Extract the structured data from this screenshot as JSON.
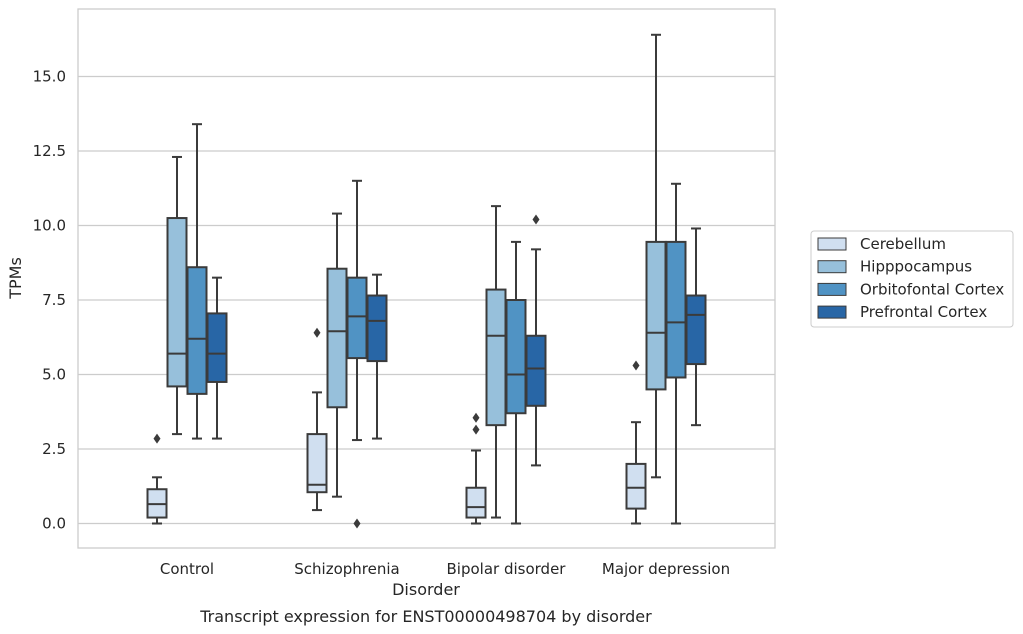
{
  "chart_data": {
    "type": "box",
    "title": "",
    "caption": "Transcript expression for ENST00000498704 by disorder",
    "xlabel": "Disorder",
    "ylabel": "TPMs",
    "ylim": [
      -0.8,
      17.5
    ],
    "yticks": [
      0.0,
      2.5,
      5.0,
      7.5,
      10.0,
      12.5,
      15.0
    ],
    "ytick_labels": [
      "0.0",
      "2.5",
      "5.0",
      "7.5",
      "10.0",
      "12.5",
      "15.0"
    ],
    "grid": "horizontal",
    "legend_position": "right",
    "categories": [
      "Control",
      "Schizophrenia",
      "Bipolar disorder",
      "Major depression"
    ],
    "series": [
      {
        "name": "Cerebellum",
        "color": "#d0dff0",
        "boxes": [
          {
            "whislo": 0.0,
            "q1": 0.2,
            "med": 0.65,
            "q3": 1.15,
            "whishi": 1.55,
            "fliers": [
              2.85
            ]
          },
          {
            "whislo": 0.45,
            "q1": 1.05,
            "med": 1.3,
            "q3": 3.0,
            "whishi": 4.4,
            "fliers": [
              6.4
            ]
          },
          {
            "whislo": 0.0,
            "q1": 0.2,
            "med": 0.55,
            "q3": 1.2,
            "whishi": 2.45,
            "fliers": [
              3.15,
              3.55
            ]
          },
          {
            "whislo": 0.0,
            "q1": 0.5,
            "med": 1.2,
            "q3": 2.0,
            "whishi": 3.4,
            "fliers": [
              5.3
            ]
          }
        ]
      },
      {
        "name": "Hipppocampus",
        "color": "#97c0db",
        "boxes": [
          {
            "whislo": 3.0,
            "q1": 4.6,
            "med": 5.7,
            "q3": 10.25,
            "whishi": 12.3,
            "fliers": []
          },
          {
            "whislo": 0.9,
            "q1": 3.9,
            "med": 6.45,
            "q3": 8.55,
            "whishi": 10.4,
            "fliers": []
          },
          {
            "whislo": 0.2,
            "q1": 3.3,
            "med": 6.3,
            "q3": 7.85,
            "whishi": 10.65,
            "fliers": []
          },
          {
            "whislo": 1.55,
            "q1": 4.5,
            "med": 6.4,
            "q3": 9.45,
            "whishi": 16.4,
            "fliers": []
          }
        ]
      },
      {
        "name": "Orbitofontal Cortex",
        "color": "#5093c4",
        "boxes": [
          {
            "whislo": 2.85,
            "q1": 4.35,
            "med": 6.2,
            "q3": 8.6,
            "whishi": 13.4,
            "fliers": []
          },
          {
            "whislo": 2.8,
            "q1": 5.55,
            "med": 6.95,
            "q3": 8.25,
            "whishi": 11.5,
            "fliers": [
              0.0
            ]
          },
          {
            "whislo": 0.0,
            "q1": 3.7,
            "med": 5.0,
            "q3": 7.5,
            "whishi": 9.45,
            "fliers": []
          },
          {
            "whislo": 0.0,
            "q1": 4.9,
            "med": 6.75,
            "q3": 9.45,
            "whishi": 11.4,
            "fliers": []
          }
        ]
      },
      {
        "name": "Prefrontal Cortex",
        "color": "#2866a6",
        "boxes": [
          {
            "whislo": 2.85,
            "q1": 4.75,
            "med": 5.7,
            "q3": 7.05,
            "whishi": 8.25,
            "fliers": []
          },
          {
            "whislo": 2.85,
            "q1": 5.45,
            "med": 6.8,
            "q3": 7.65,
            "whishi": 8.35,
            "fliers": []
          },
          {
            "whislo": 1.95,
            "q1": 3.95,
            "med": 5.2,
            "q3": 6.3,
            "whishi": 9.2,
            "fliers": [
              10.2
            ]
          },
          {
            "whislo": 3.3,
            "q1": 5.35,
            "med": 7.0,
            "q3": 7.65,
            "whishi": 9.9,
            "fliers": []
          }
        ]
      }
    ]
  }
}
